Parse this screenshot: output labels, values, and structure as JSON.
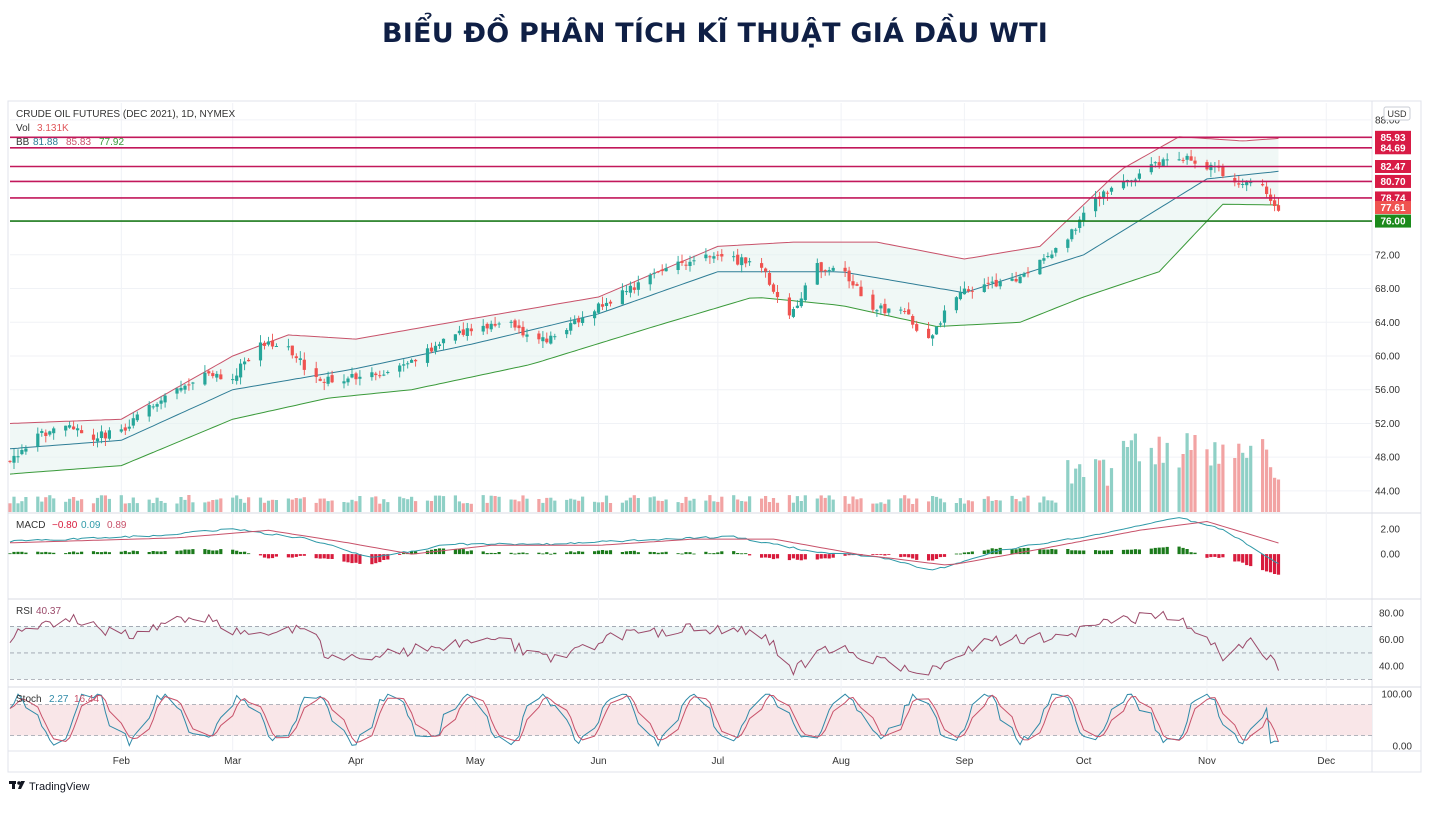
{
  "title": "BIỂU ĐỒ PHÂN TÍCH KĨ THUẬT GIÁ DẦU WTI",
  "brand": "TradingView",
  "currency": "USD",
  "legend": {
    "symbol": "CRUDE OIL FUTURES (DEC 2021), 1D, NYMEX",
    "vol_label": "Vol",
    "vol_value": "3.131K",
    "bb_label": "BB",
    "bb_values": [
      "81.88",
      "85.83",
      "77.92"
    ],
    "macd_label": "MACD",
    "macd_values": [
      "−0.80",
      "0.09",
      "0.89"
    ],
    "rsi_label": "RSI",
    "rsi_value": "40.37",
    "stoch_label": "Stoch",
    "stoch_values": [
      "2.27",
      "16.44"
    ]
  },
  "colors": {
    "title": "#0f1f45",
    "up": "#26a69a",
    "down": "#ef5350",
    "resistance": "#c2185b",
    "support": "#1b7a1b",
    "bb_upper": "#c8526a",
    "bb_basis": "#2e7d96",
    "bb_lower": "#3a9a3a",
    "macd_line": "#2f9aa8",
    "signal_line": "#c8526a",
    "hist_pos": "#1b7a1b",
    "hist_neg": "#d81b3c",
    "rsi_line": "#9b4a6a",
    "stoch_k": "#2f8aa8",
    "stoch_d": "#c8526a"
  },
  "chart_data": {
    "type": "candlestick",
    "symbol": "CRUDE OIL FUTURES (DEC 2021), 1D, NYMEX",
    "x_labels": [
      "Feb",
      "Mar",
      "Apr",
      "May",
      "Jun",
      "Jul",
      "Aug",
      "Sep",
      "Oct",
      "Nov",
      "Dec"
    ],
    "price_ticks": [
      "88.00",
      "72.00",
      "68.00",
      "64.00",
      "60.00",
      "56.00",
      "52.00",
      "48.00",
      "44.00"
    ],
    "ylim": [
      41.5,
      90
    ],
    "horizontal_levels": [
      {
        "value": 85.93,
        "label": "85.93",
        "kind": "resistance"
      },
      {
        "value": 84.69,
        "label": "84.69",
        "kind": "resistance"
      },
      {
        "value": 82.47,
        "label": "82.47",
        "kind": "resistance"
      },
      {
        "value": 80.7,
        "label": "80.70",
        "kind": "resistance"
      },
      {
        "value": 78.74,
        "label": "78.74",
        "kind": "resistance"
      },
      {
        "value": 76.0,
        "label": "76.00",
        "kind": "support"
      }
    ],
    "last_price": {
      "value": 77.61,
      "label": "77.61"
    },
    "price_path": [
      [
        "2021-01-04",
        47.5
      ],
      [
        "2021-01-11",
        50.5
      ],
      [
        "2021-01-18",
        51.5
      ],
      [
        "2021-01-25",
        50.5
      ],
      [
        "2021-02-01",
        51.0
      ],
      [
        "2021-02-08",
        54.0
      ],
      [
        "2021-02-15",
        56.0
      ],
      [
        "2021-02-22",
        58.0
      ],
      [
        "2021-03-01",
        57.5
      ],
      [
        "2021-03-08",
        61.5
      ],
      [
        "2021-03-15",
        61.0
      ],
      [
        "2021-03-22",
        57.0
      ],
      [
        "2021-03-29",
        57.5
      ],
      [
        "2021-04-05",
        58.0
      ],
      [
        "2021-04-12",
        58.5
      ],
      [
        "2021-04-19",
        60.5
      ],
      [
        "2021-04-26",
        62.5
      ],
      [
        "2021-05-03",
        63.5
      ],
      [
        "2021-05-10",
        64.0
      ],
      [
        "2021-05-17",
        61.5
      ],
      [
        "2021-05-24",
        63.5
      ],
      [
        "2021-05-31",
        65.5
      ],
      [
        "2021-06-07",
        67.5
      ],
      [
        "2021-06-14",
        69.5
      ],
      [
        "2021-06-21",
        71.0
      ],
      [
        "2021-06-28",
        71.5
      ],
      [
        "2021-07-05",
        71.5
      ],
      [
        "2021-07-12",
        70.5
      ],
      [
        "2021-07-19",
        64.5
      ],
      [
        "2021-07-26",
        70.5
      ],
      [
        "2021-08-02",
        70.0
      ],
      [
        "2021-08-09",
        65.5
      ],
      [
        "2021-08-16",
        65.5
      ],
      [
        "2021-08-23",
        62.0
      ],
      [
        "2021-08-30",
        67.5
      ],
      [
        "2021-09-06",
        68.5
      ],
      [
        "2021-09-13",
        69.0
      ],
      [
        "2021-09-20",
        71.0
      ],
      [
        "2021-09-27",
        74.0
      ],
      [
        "2021-10-04",
        78.5
      ],
      [
        "2021-10-11",
        80.5
      ],
      [
        "2021-10-18",
        82.5
      ],
      [
        "2021-10-25",
        83.5
      ],
      [
        "2021-11-01",
        82.5
      ],
      [
        "2021-11-08",
        81.0
      ],
      [
        "2021-11-15",
        80.0
      ],
      [
        "2021-11-19",
        77.6
      ]
    ],
    "bb_upper": [
      [
        "2021-01-04",
        52.0
      ],
      [
        "2021-02-01",
        52.5
      ],
      [
        "2021-03-01",
        60.0
      ],
      [
        "2021-03-15",
        62.5
      ],
      [
        "2021-04-01",
        62.0
      ],
      [
        "2021-05-01",
        64.5
      ],
      [
        "2021-06-01",
        67.0
      ],
      [
        "2021-07-01",
        73.0
      ],
      [
        "2021-07-20",
        73.5
      ],
      [
        "2021-08-10",
        73.5
      ],
      [
        "2021-09-01",
        71.5
      ],
      [
        "2021-09-20",
        73.0
      ],
      [
        "2021-10-10",
        82.0
      ],
      [
        "2021-10-25",
        86.0
      ],
      [
        "2021-11-10",
        85.5
      ],
      [
        "2021-11-19",
        85.8
      ]
    ],
    "bb_lower": [
      [
        "2021-01-04",
        46.0
      ],
      [
        "2021-02-01",
        47.0
      ],
      [
        "2021-03-01",
        52.5
      ],
      [
        "2021-03-25",
        55.0
      ],
      [
        "2021-04-15",
        56.0
      ],
      [
        "2021-05-15",
        59.0
      ],
      [
        "2021-06-15",
        63.5
      ],
      [
        "2021-07-10",
        67.0
      ],
      [
        "2021-08-01",
        66.0
      ],
      [
        "2021-08-25",
        63.5
      ],
      [
        "2021-09-15",
        64.0
      ],
      [
        "2021-10-01",
        67.0
      ],
      [
        "2021-10-20",
        70.0
      ],
      [
        "2021-11-05",
        78.0
      ],
      [
        "2021-11-19",
        77.9
      ]
    ],
    "bb_basis": [
      [
        "2021-01-04",
        49.0
      ],
      [
        "2021-02-01",
        50.0
      ],
      [
        "2021-03-01",
        56.0
      ],
      [
        "2021-04-01",
        58.5
      ],
      [
        "2021-05-01",
        61.5
      ],
      [
        "2021-06-01",
        65.0
      ],
      [
        "2021-07-01",
        70.0
      ],
      [
        "2021-08-01",
        70.0
      ],
      [
        "2021-09-01",
        67.5
      ],
      [
        "2021-10-01",
        72.0
      ],
      [
        "2021-11-01",
        81.0
      ],
      [
        "2021-11-19",
        81.9
      ]
    ],
    "macd": {
      "ticks": [
        "2.00",
        "0.00"
      ],
      "ylim": [
        -3.5,
        3.2
      ],
      "macd": -0.8,
      "signal": 0.89,
      "histogram": 0.09
    },
    "rsi": {
      "ticks": [
        "80.00",
        "60.00",
        "40.00"
      ],
      "ylim": [
        25,
        90
      ],
      "bands": [
        30,
        50,
        70
      ],
      "value": 40.37
    },
    "stoch": {
      "ticks": [
        "100.00",
        "0.00"
      ],
      "ylim": [
        -8,
        112
      ],
      "bands": [
        20,
        80
      ],
      "k": 2.27,
      "d": 16.44
    }
  }
}
